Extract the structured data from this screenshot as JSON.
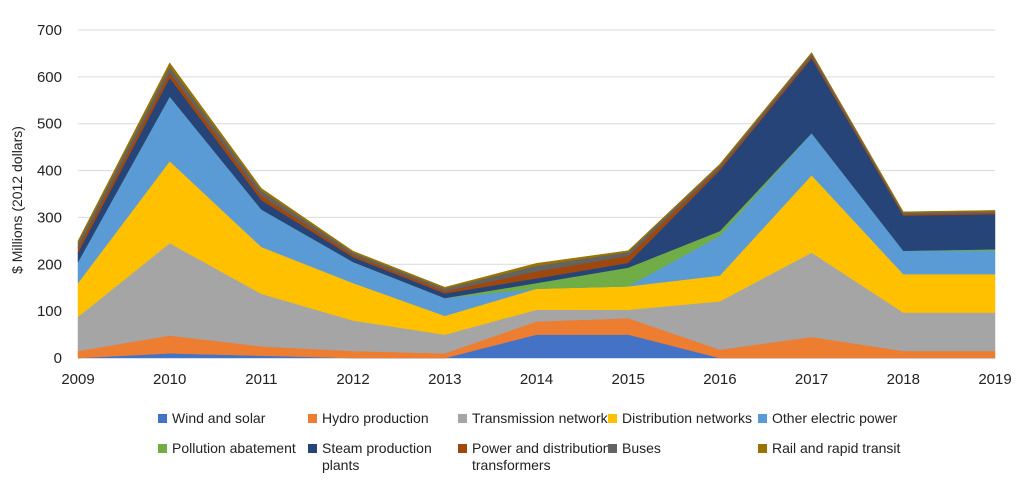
{
  "chart_data": {
    "type": "area",
    "stacked": true,
    "title": "",
    "xlabel": "",
    "ylabel": "$ Millions (2012 dollars)",
    "x": [
      "2009",
      "2010",
      "2011",
      "2012",
      "2013",
      "2014",
      "2015",
      "2016",
      "2017",
      "2018",
      "2019"
    ],
    "ylim": [
      0,
      700
    ],
    "yticks": [
      0,
      100,
      200,
      300,
      400,
      500,
      600,
      700
    ],
    "grid": true,
    "legend_position": "bottom",
    "series": [
      {
        "name": "Wind and solar",
        "color": "#4472C4",
        "values": [
          0,
          10,
          5,
          0,
          0,
          50,
          50,
          0,
          0,
          0,
          0
        ]
      },
      {
        "name": "Hydro production",
        "color": "#ED7D31",
        "values": [
          15,
          38,
          20,
          15,
          10,
          28,
          35,
          18,
          45,
          15,
          15
        ]
      },
      {
        "name": "Transmission networks",
        "color": "#A5A5A5",
        "values": [
          73,
          197,
          112,
          65,
          40,
          25,
          18,
          103,
          180,
          82,
          82
        ]
      },
      {
        "name": "Distribution networks",
        "color": "#FFC000",
        "values": [
          72,
          175,
          100,
          80,
          40,
          45,
          50,
          55,
          165,
          82,
          82
        ]
      },
      {
        "name": "Other electric power",
        "color": "#5B9BD5",
        "values": [
          45,
          138,
          80,
          45,
          38,
          0,
          0,
          85,
          90,
          50,
          50
        ]
      },
      {
        "name": "Pollution abatement",
        "color": "#70AD47",
        "values": [
          0,
          0,
          0,
          0,
          0,
          12,
          40,
          10,
          0,
          0,
          3
        ]
      },
      {
        "name": "Steam production plants",
        "color": "#264478",
        "values": [
          20,
          40,
          20,
          10,
          10,
          10,
          10,
          130,
          160,
          75,
          75
        ]
      },
      {
        "name": "Power and distribution transformers",
        "color": "#9E480E",
        "values": [
          10,
          12,
          10,
          5,
          5,
          15,
          15,
          5,
          5,
          3,
          3
        ]
      },
      {
        "name": "Buses",
        "color": "#636363",
        "values": [
          10,
          12,
          10,
          5,
          5,
          12,
          8,
          5,
          5,
          3,
          3
        ]
      },
      {
        "name": "Rail and rapid transit",
        "color": "#997300",
        "values": [
          5,
          8,
          5,
          3,
          3,
          5,
          3,
          3,
          2,
          2,
          2
        ]
      }
    ]
  }
}
